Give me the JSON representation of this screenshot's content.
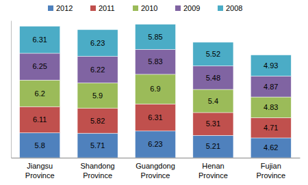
{
  "chart_data": {
    "type": "bar",
    "stacked": true,
    "data_labels": true,
    "legend": "top",
    "tick_labels": "x",
    "grid": false,
    "categories": [
      "Jiangsu Province",
      "Shandong Province",
      "Guangdong Province",
      "Henan Province",
      "Fujian Province"
    ],
    "series": [
      {
        "name": "2012",
        "color": "#4f81bd",
        "values": [
          5.8,
          5.71,
          6.23,
          5.21,
          4.62
        ]
      },
      {
        "name": "2011",
        "color": "#c0504d",
        "values": [
          6.11,
          5.82,
          6.31,
          5.31,
          4.71
        ]
      },
      {
        "name": "2010",
        "color": "#9bbb59",
        "values": [
          6.2,
          5.9,
          6.9,
          5.4,
          4.83
        ]
      },
      {
        "name": "2009",
        "color": "#8064a2",
        "values": [
          6.25,
          6.22,
          5.83,
          5.48,
          4.87
        ]
      },
      {
        "name": "2008",
        "color": "#4bacc6",
        "values": [
          6.31,
          6.23,
          5.85,
          5.52,
          4.93
        ]
      }
    ],
    "ylim": [
      0,
      32
    ],
    "yticks": []
  }
}
